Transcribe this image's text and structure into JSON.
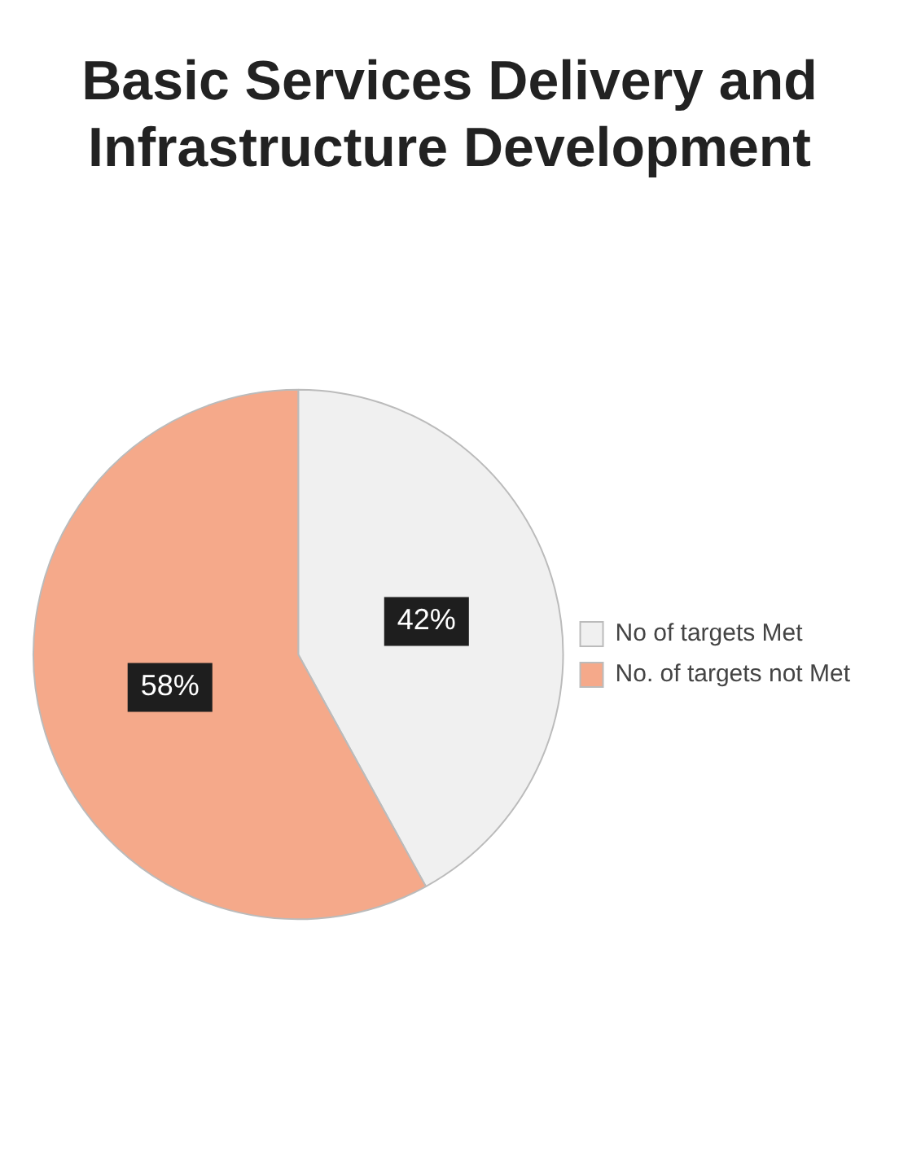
{
  "chart_data": {
    "type": "pie",
    "title": "Basic Services Delivery and Infrastructure Development",
    "categories": [
      "No of targets Met",
      "No. of targets not Met"
    ],
    "values": [
      42,
      58
    ],
    "colors": [
      "#f0f0f0",
      "#f5a98a"
    ],
    "value_labels": [
      "42%",
      "58%"
    ],
    "legend": "right"
  }
}
